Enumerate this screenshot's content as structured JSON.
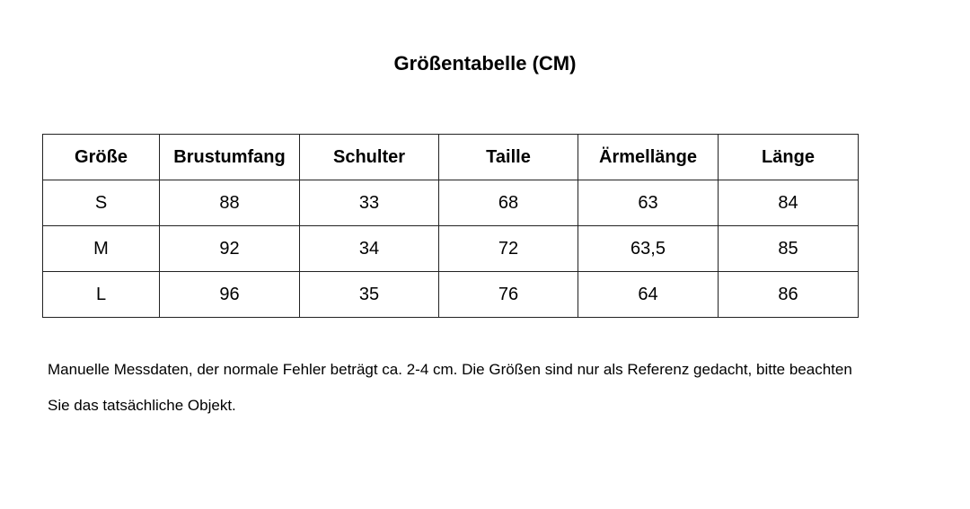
{
  "title": "Größentabelle (CM)",
  "table": {
    "header": [
      "Größe",
      "Brustumfang",
      "Schulter",
      "Taille",
      "Ärmellänge",
      "Länge"
    ],
    "rows": [
      [
        "S",
        "88",
        "33",
        "68",
        "63",
        "84"
      ],
      [
        "M",
        "92",
        "34",
        "72",
        "63,5",
        "85"
      ],
      [
        "L",
        "96",
        "35",
        "76",
        "64",
        "86"
      ]
    ]
  },
  "note": {
    "lines": [
      "Manuelle Messdaten, der normale Fehler beträgt ca. 2-4 cm. Die Größen sind nur als Referenz gedacht, bitte beachten",
      "Sie das tatsächliche Objekt."
    ]
  }
}
